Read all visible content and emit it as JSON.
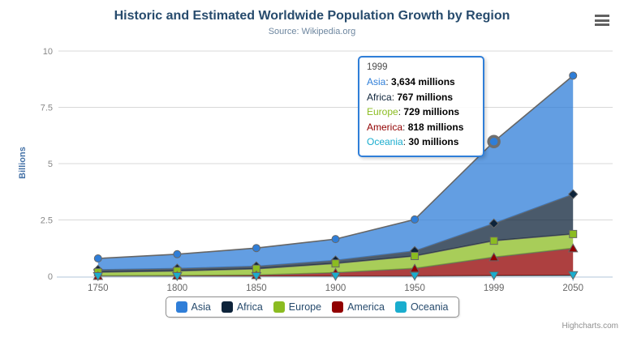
{
  "chart_data": {
    "type": "area",
    "stacking": "normal",
    "title": "Historic and Estimated Worldwide Population Growth by Region",
    "subtitle": "Source: Wikipedia.org",
    "categories": [
      "1750",
      "1800",
      "1850",
      "1900",
      "1950",
      "1999",
      "2050"
    ],
    "xlabel": "",
    "ylabel": "Billions",
    "unit": "millions",
    "yticks": [
      0,
      2.5,
      5,
      7.5,
      10
    ],
    "ylim": [
      0,
      10
    ],
    "grid": true,
    "legend_position": "bottom",
    "fill_opacity": 0.75,
    "line_color": "#666666",
    "axis_line_color": "#c0d0e0",
    "gridline_color": "#d8d8d8",
    "stack_order_bottom_to_top": [
      "Oceania",
      "America",
      "Europe",
      "Africa",
      "Asia"
    ],
    "series": [
      {
        "name": "Asia",
        "color": "#2f7ed8",
        "marker": "circle",
        "values": [
          502,
          635,
          809,
          947,
          1402,
          3634,
          5268
        ]
      },
      {
        "name": "Africa",
        "color": "#0d233a",
        "marker": "diamond",
        "values": [
          106,
          107,
          111,
          133,
          221,
          767,
          1766
        ]
      },
      {
        "name": "Europe",
        "color": "#8bbc21",
        "marker": "square",
        "values": [
          163,
          203,
          276,
          408,
          547,
          729,
          628
        ]
      },
      {
        "name": "America",
        "color": "#910000",
        "marker": "triangle",
        "values": [
          18,
          31,
          54,
          156,
          339,
          818,
          1201
        ]
      },
      {
        "name": "Oceania",
        "color": "#1aadce",
        "marker": "triangle-down",
        "values": [
          2,
          2,
          2,
          6,
          13,
          30,
          46
        ]
      }
    ]
  },
  "tooltip": {
    "header": "1999",
    "highlighted_point": {
      "series": "Asia",
      "category": "1999"
    },
    "rows": [
      {
        "name": "Asia",
        "value": "3,634 millions"
      },
      {
        "name": "Africa",
        "value": "767 millions"
      },
      {
        "name": "Europe",
        "value": "729 millions"
      },
      {
        "name": "America",
        "value": "818 millions"
      },
      {
        "name": "Oceania",
        "value": "30 millions"
      }
    ]
  },
  "legend": {
    "items": [
      "Asia",
      "Africa",
      "Europe",
      "America",
      "Oceania"
    ]
  },
  "controls": {
    "context_menu_icon": "hamburger-icon"
  },
  "credits": {
    "label": "Highcharts.com"
  }
}
